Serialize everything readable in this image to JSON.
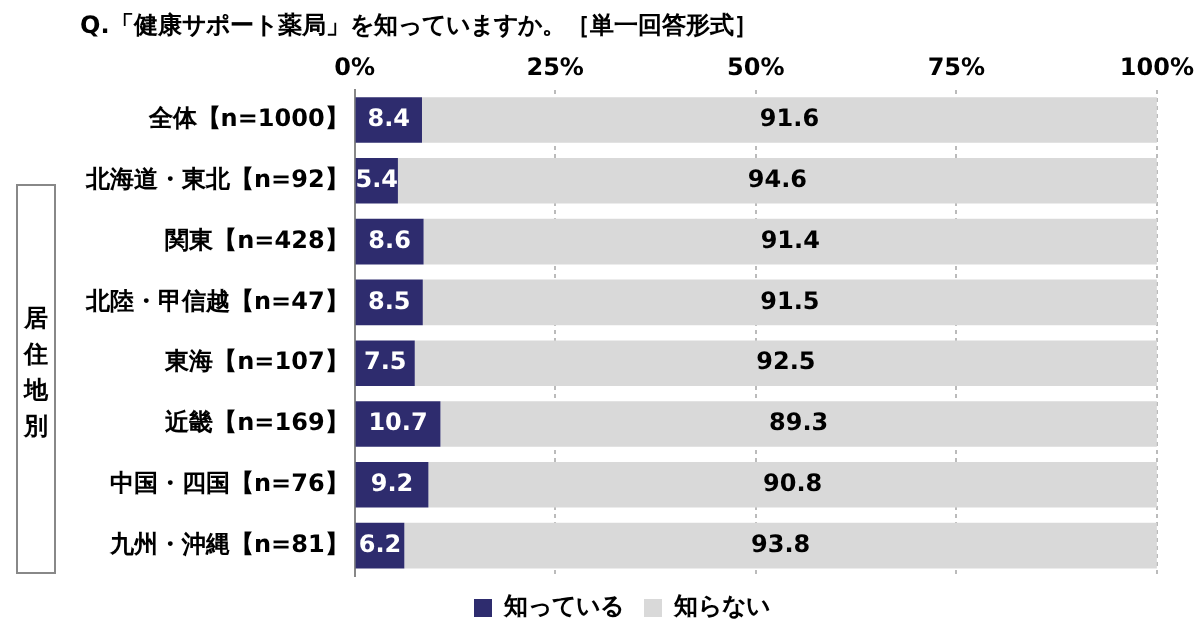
{
  "chart_data": {
    "type": "bar",
    "orientation": "horizontal",
    "stacked": true,
    "title": "Q.「健康サポート薬局」を知っていますか。［単一回答形式］",
    "categories": [
      "全体【n=1000】",
      "北海道・東北【n=92】",
      "関東【n=428】",
      "北陸・甲信越【n=47】",
      "東海【n=107】",
      "近畿【n=169】",
      "中国・四国【n=76】",
      "九州・沖縄【n=81】"
    ],
    "series": [
      {
        "name": "知っている",
        "color": "#2e2c6e",
        "values": [
          8.4,
          5.4,
          8.6,
          8.5,
          7.5,
          10.7,
          9.2,
          6.2
        ]
      },
      {
        "name": "知らない",
        "color": "#d9d9d9",
        "values": [
          91.6,
          94.6,
          91.4,
          91.5,
          92.5,
          89.3,
          90.8,
          93.8
        ]
      }
    ],
    "xlim": [
      0,
      100
    ],
    "xticks": [
      {
        "value": 0,
        "label": "0%"
      },
      {
        "value": 25,
        "label": "25%"
      },
      {
        "value": 50,
        "label": "50%"
      },
      {
        "value": 75,
        "label": "75%"
      },
      {
        "value": 100,
        "label": "100%"
      }
    ],
    "grid": "x",
    "legend": "bottom",
    "data_labels": true,
    "annotations": [
      "居住地別"
    ]
  }
}
